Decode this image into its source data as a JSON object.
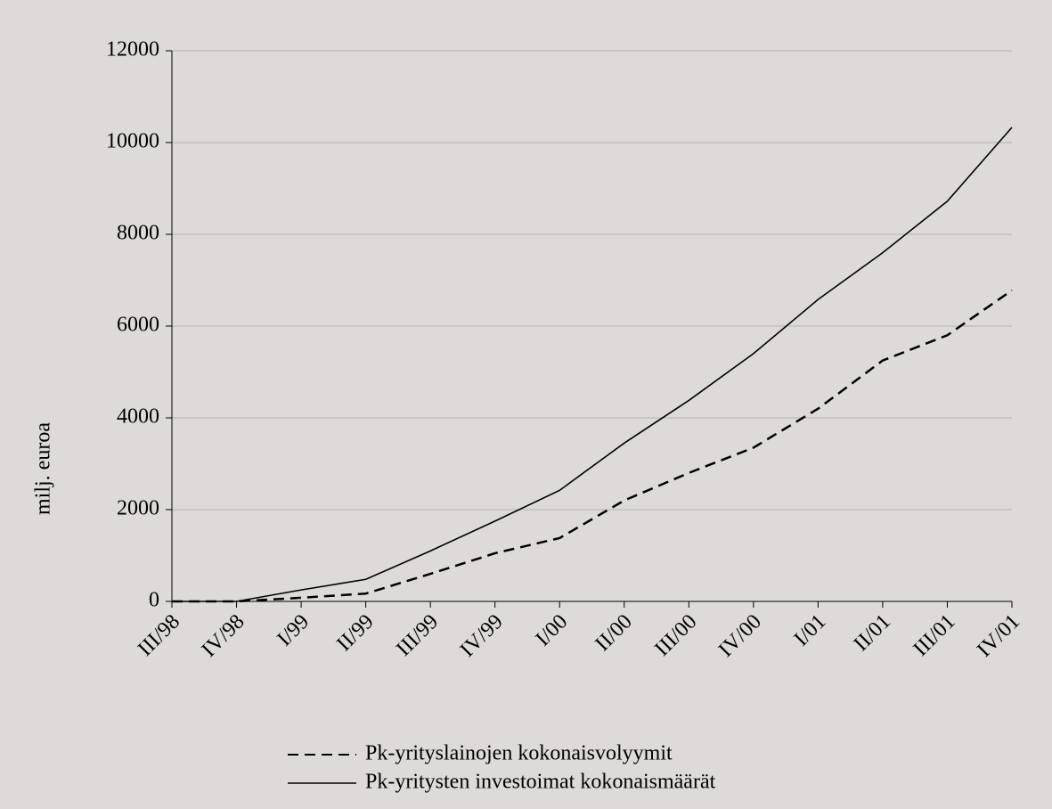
{
  "chart_data": {
    "type": "line",
    "y_label": "milj. euroa",
    "categories": [
      "III/98",
      "IV/98",
      "I/99",
      "II/99",
      "III/99",
      "IV/99",
      "I/00",
      "II/00",
      "III/00",
      "IV/00",
      "I/01",
      "II/01",
      "III/01",
      "IV/01"
    ],
    "series": [
      {
        "name": "Pk-yrityslainojen kokonaisvolyymit",
        "color": "#000000",
        "line_style": "dashed",
        "values": [
          0,
          0,
          80,
          170,
          600,
          1050,
          1380,
          2200,
          2800,
          3350,
          4200,
          5250,
          5800,
          6780
        ]
      },
      {
        "name": "Pk-yritysten investoimat kokonaismäärät",
        "color": "#000000",
        "line_style": "solid",
        "values": [
          0,
          0,
          250,
          480,
          1100,
          1750,
          2420,
          3450,
          4380,
          5400,
          6580,
          7600,
          8720,
          10330
        ]
      }
    ],
    "ylim": [
      0,
      12000
    ],
    "yticks": [
      0,
      2000,
      4000,
      6000,
      8000,
      10000,
      12000
    ],
    "grid": true
  }
}
